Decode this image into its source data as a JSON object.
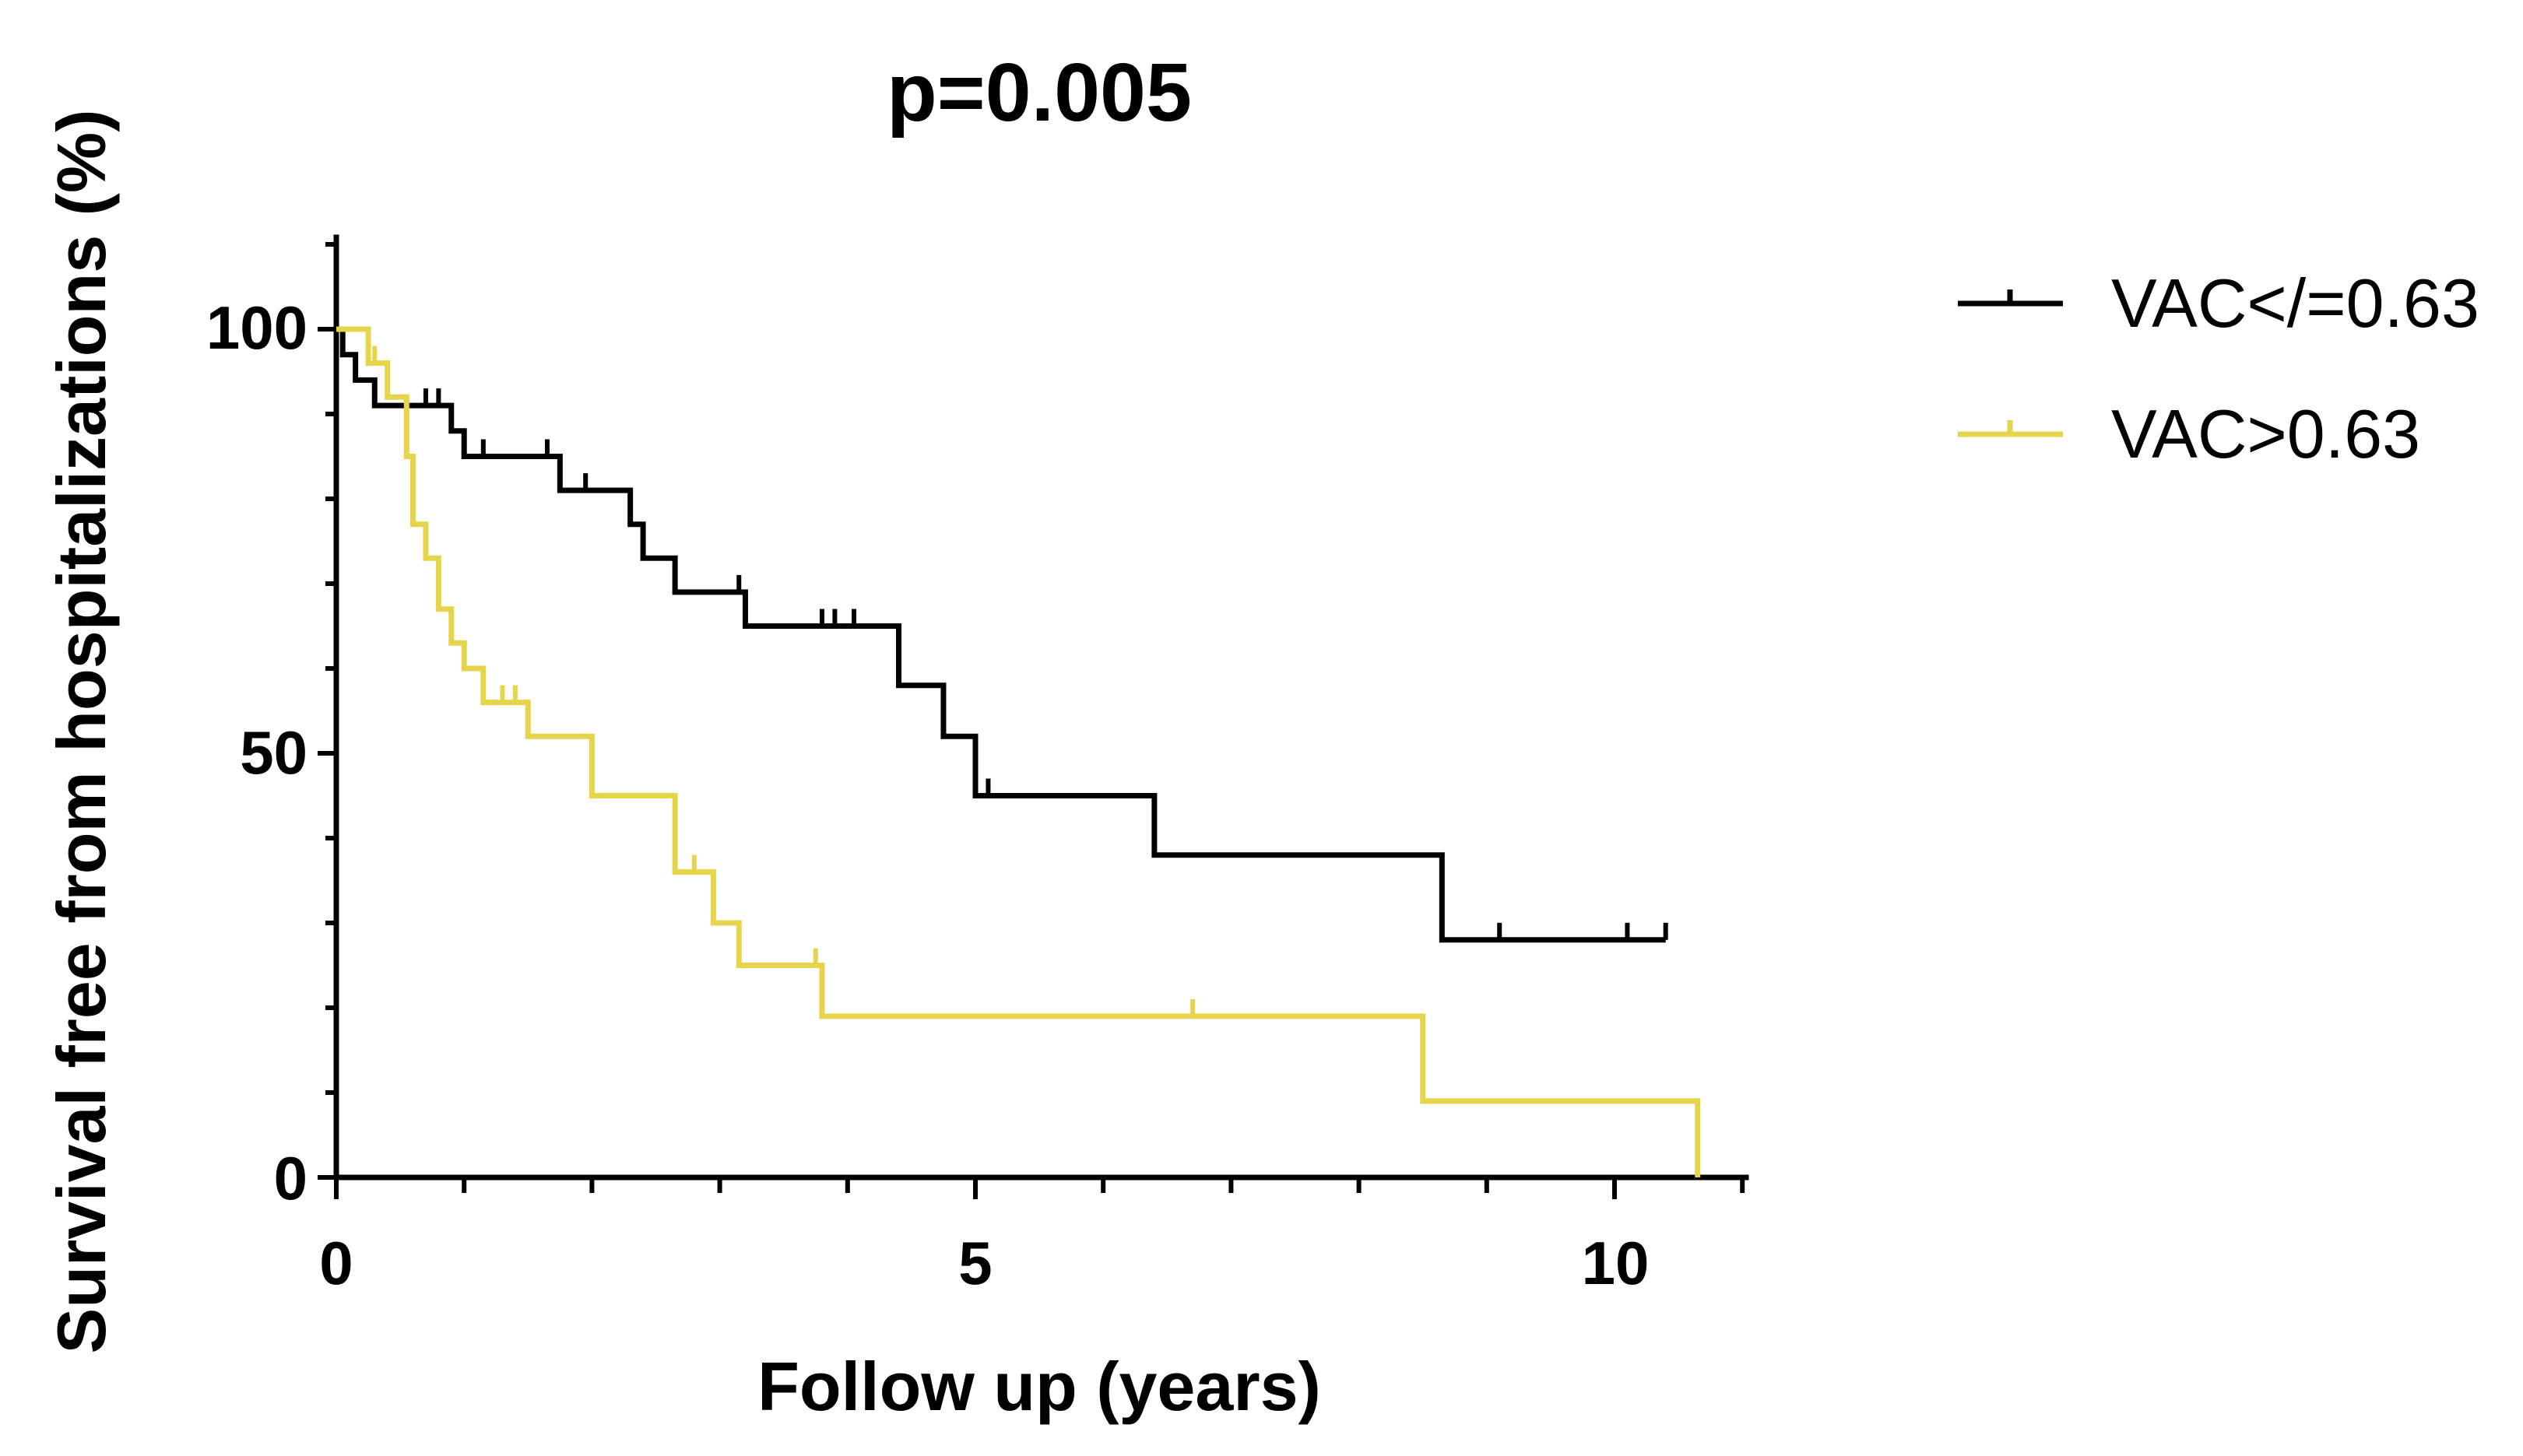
{
  "chart_data": {
    "type": "line",
    "subtype": "kaplan-meier",
    "title": "p=0.005",
    "xlabel": "Follow up (years)",
    "ylabel": "Survival free from hospitalizations (%)",
    "xlim": [
      0,
      11
    ],
    "ylim": [
      0,
      110
    ],
    "x_ticks": [
      0,
      5,
      10
    ],
    "x_tick_labels": [
      "0",
      "5",
      "10"
    ],
    "y_ticks": [
      0,
      50,
      100
    ],
    "y_tick_labels": [
      "0",
      "50",
      "100"
    ],
    "legend_position": "top-right",
    "series": [
      {
        "name": "VAC</=0.63",
        "color": "#000000",
        "steps": [
          [
            0,
            100
          ],
          [
            0.05,
            97
          ],
          [
            0.15,
            94
          ],
          [
            0.3,
            91
          ],
          [
            0.9,
            88
          ],
          [
            1.0,
            85
          ],
          [
            1.75,
            81
          ],
          [
            2.3,
            77
          ],
          [
            2.4,
            73
          ],
          [
            2.65,
            69
          ],
          [
            3.2,
            65
          ],
          [
            4.4,
            58
          ],
          [
            4.75,
            52
          ],
          [
            5.0,
            45
          ],
          [
            6.4,
            38
          ],
          [
            8.65,
            28
          ],
          [
            10.4,
            28
          ]
        ],
        "censored": [
          [
            0.7,
            91
          ],
          [
            0.8,
            91
          ],
          [
            1.15,
            85
          ],
          [
            1.65,
            85
          ],
          [
            1.95,
            81
          ],
          [
            3.15,
            69
          ],
          [
            3.8,
            65
          ],
          [
            3.9,
            65
          ],
          [
            4.05,
            65
          ],
          [
            5.1,
            45
          ],
          [
            9.1,
            28
          ],
          [
            10.1,
            28
          ],
          [
            10.4,
            28
          ]
        ]
      },
      {
        "name": "VAC>0.63",
        "color": "#e6d44a",
        "steps": [
          [
            0,
            100
          ],
          [
            0.25,
            96
          ],
          [
            0.4,
            92
          ],
          [
            0.55,
            85
          ],
          [
            0.6,
            77
          ],
          [
            0.7,
            73
          ],
          [
            0.8,
            67
          ],
          [
            0.9,
            63
          ],
          [
            1.0,
            60
          ],
          [
            1.15,
            56
          ],
          [
            1.5,
            52
          ],
          [
            2.0,
            45
          ],
          [
            2.65,
            36
          ],
          [
            2.95,
            30
          ],
          [
            3.15,
            25
          ],
          [
            3.8,
            19
          ],
          [
            8.5,
            9
          ],
          [
            10.65,
            9
          ],
          [
            10.65,
            0
          ]
        ],
        "censored": [
          [
            0.3,
            96
          ],
          [
            1.3,
            56
          ],
          [
            1.4,
            56
          ],
          [
            2.8,
            36
          ],
          [
            3.75,
            25
          ],
          [
            6.7,
            19
          ]
        ]
      }
    ]
  }
}
